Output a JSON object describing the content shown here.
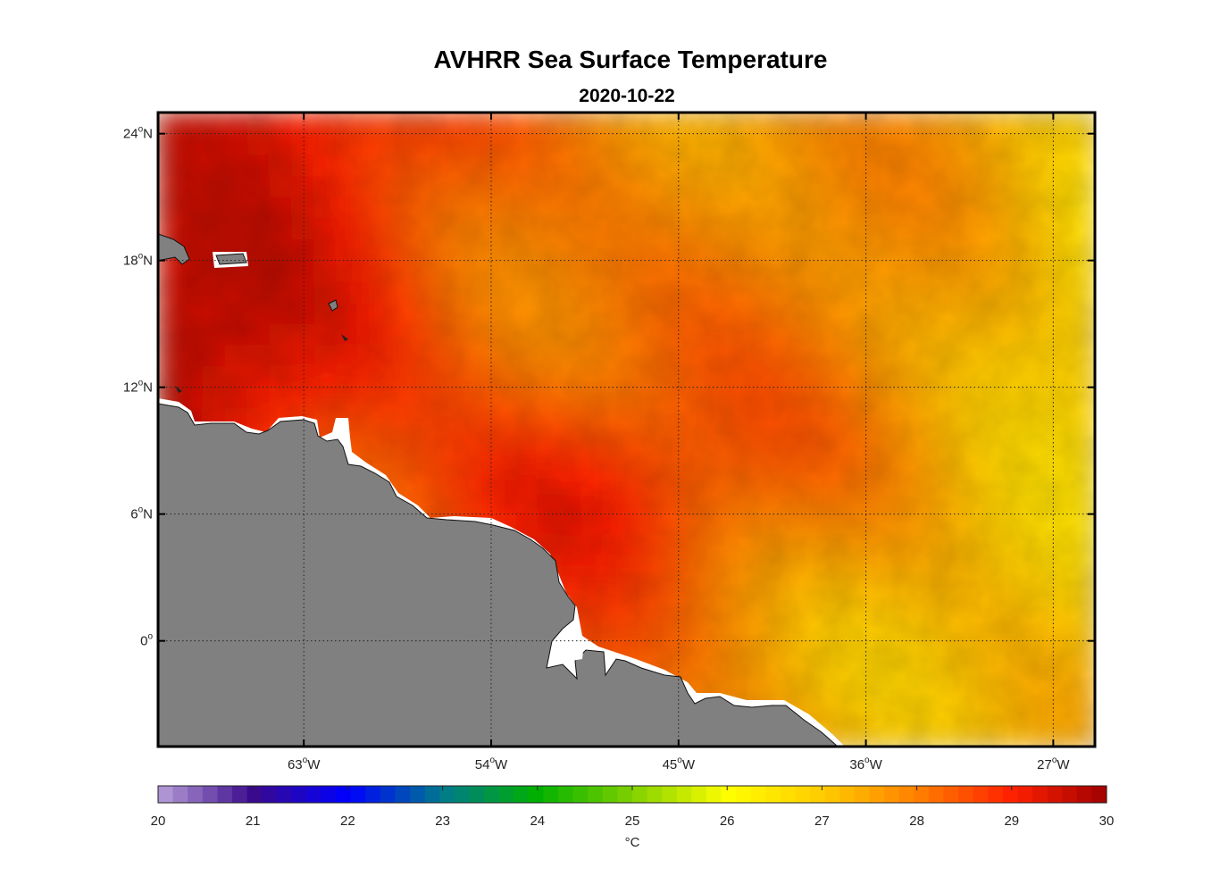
{
  "chart_data": {
    "type": "heatmap",
    "title": "AVHRR Sea Surface Temperature",
    "subtitle": "2020-10-22",
    "colorbar_label": "°C",
    "colorbar_range": [
      20,
      30
    ],
    "colorbar_ticks": [
      "20",
      "21",
      "22",
      "23",
      "24",
      "25",
      "26",
      "27",
      "28",
      "29",
      "30"
    ],
    "lon_range": [
      -70,
      -25
    ],
    "lat_range": [
      -5,
      25
    ],
    "lon_ticks": [
      {
        "value": -63,
        "deg": "63",
        "hem": "W"
      },
      {
        "value": -54,
        "deg": "54",
        "hem": "W"
      },
      {
        "value": -45,
        "deg": "45",
        "hem": "W"
      },
      {
        "value": -36,
        "deg": "36",
        "hem": "W"
      },
      {
        "value": -27,
        "deg": "27",
        "hem": "W"
      }
    ],
    "lat_ticks": [
      {
        "value": 24,
        "deg": "24",
        "hem": "N"
      },
      {
        "value": 18,
        "deg": "18",
        "hem": "N"
      },
      {
        "value": 12,
        "deg": "12",
        "hem": "N"
      },
      {
        "value": 6,
        "deg": "6",
        "hem": "N"
      },
      {
        "value": 0,
        "deg": "0",
        "hem": ""
      }
    ],
    "grid": true,
    "land_color": "#808080",
    "colormap": [
      "#b8a0d8",
      "#3a0a8c",
      "#0000ff",
      "#007a8c",
      "#00b000",
      "#80d000",
      "#ffff00",
      "#ffcc00",
      "#ff8000",
      "#ff2000",
      "#a00000"
    ],
    "sst_field_note": "Warmest (~29.5 °C) along the South American coast and in the NW corner; cooling to ~26.5 °C toward the NE and SE corners."
  }
}
